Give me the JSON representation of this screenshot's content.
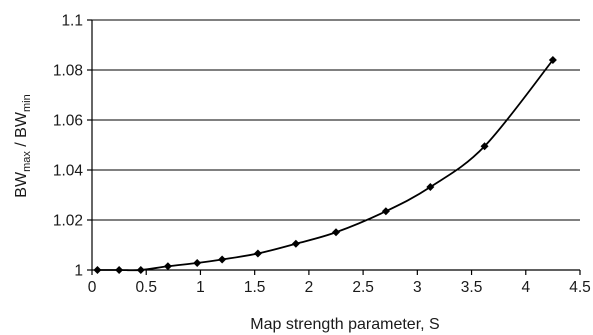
{
  "chart_data": {
    "type": "scatter",
    "title": "",
    "xlabel": "Map strength parameter, S",
    "ylabel": {
      "base1": "BW",
      "sub1": "max",
      "sep": " / ",
      "base2": "BW",
      "sub2": "min"
    },
    "xlim": [
      0,
      4.5
    ],
    "ylim": [
      1,
      1.1
    ],
    "x_ticks": [
      "0",
      "0.5",
      "1",
      "1.5",
      "2",
      "2.5",
      "3",
      "3.5",
      "4",
      "4.5"
    ],
    "y_ticks": [
      "1",
      "1.02",
      "1.04",
      "1.06",
      "1.08",
      "1.1"
    ],
    "grid": "horizontal",
    "marker": "diamond",
    "trendline": "smooth",
    "series": [
      {
        "x": [
          0.05,
          0.25,
          0.45,
          0.7,
          0.97,
          1.2,
          1.53,
          1.88,
          2.25,
          2.71,
          3.12,
          3.62,
          4.25
        ],
        "y": [
          1.0,
          1.0,
          1.0,
          1.0015,
          1.0028,
          1.0042,
          1.0066,
          1.0105,
          1.0151,
          1.0235,
          1.0332,
          1.0495,
          1.084
        ]
      }
    ],
    "colors": {
      "line": "#000000",
      "marker": "#000000",
      "grid": "#000000"
    }
  }
}
